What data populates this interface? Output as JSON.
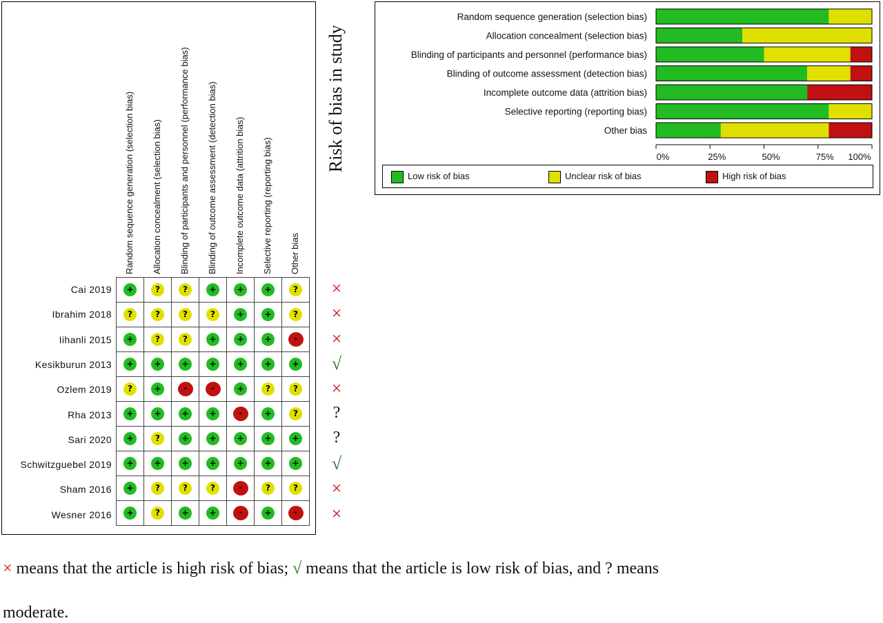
{
  "chart_data": [
    {
      "type": "table",
      "title": "",
      "domains": [
        "Random sequence generation (selection bias)",
        "Allocation concealment (selection bias)",
        "Blinding of participants and personnel (performance bias)",
        "Blinding of outcome assessment (detection bias)",
        "Incomplete outcome data (attrition bias)",
        "Selective reporting (reporting bias)",
        "Other bias"
      ],
      "verdict_header": "Risk of bias in study",
      "studies": [
        {
          "name": "Cai 2019",
          "ratings": [
            "low",
            "unclear",
            "unclear",
            "low",
            "low",
            "low",
            "unclear"
          ],
          "verdict": "high"
        },
        {
          "name": "Ibrahim 2018",
          "ratings": [
            "unclear",
            "unclear",
            "unclear",
            "unclear",
            "low",
            "low",
            "unclear"
          ],
          "verdict": "high"
        },
        {
          "name": "Iihanli 2015",
          "ratings": [
            "low",
            "unclear",
            "unclear",
            "low",
            "low",
            "low",
            "high"
          ],
          "verdict": "high"
        },
        {
          "name": "Kesikburun 2013",
          "ratings": [
            "low",
            "low",
            "low",
            "low",
            "low",
            "low",
            "low"
          ],
          "verdict": "low"
        },
        {
          "name": "Ozlem 2019",
          "ratings": [
            "unclear",
            "low",
            "high",
            "high",
            "low",
            "unclear",
            "unclear"
          ],
          "verdict": "high"
        },
        {
          "name": "Rha 2013",
          "ratings": [
            "low",
            "low",
            "low",
            "low",
            "high",
            "low",
            "unclear"
          ],
          "verdict": "unclear"
        },
        {
          "name": "Sari 2020",
          "ratings": [
            "low",
            "unclear",
            "low",
            "low",
            "low",
            "low",
            "low"
          ],
          "verdict": "unclear"
        },
        {
          "name": "Schwitzguebel 2019",
          "ratings": [
            "low",
            "low",
            "low",
            "low",
            "low",
            "low",
            "low"
          ],
          "verdict": "low"
        },
        {
          "name": "Sham 2016",
          "ratings": [
            "low",
            "unclear",
            "unclear",
            "unclear",
            "high",
            "unclear",
            "unclear"
          ],
          "verdict": "high"
        },
        {
          "name": "Wesner 2016",
          "ratings": [
            "low",
            "unclear",
            "low",
            "low",
            "high",
            "low",
            "high"
          ],
          "verdict": "high"
        }
      ],
      "symbols": {
        "low": "+",
        "unclear": "?",
        "high": "-"
      },
      "verdict_symbols": {
        "high": "×",
        "low": "√",
        "unclear": "?"
      },
      "colors": {
        "low": "#22bb22",
        "unclear": "#e0e000",
        "high": "#c01010"
      }
    },
    {
      "type": "bar",
      "orientation": "horizontal-stacked",
      "categories": [
        "Random sequence generation (selection bias)",
        "Allocation concealment (selection bias)",
        "Blinding of participants and personnel (performance bias)",
        "Blinding of outcome assessment (detection bias)",
        "Incomplete outcome data (attrition bias)",
        "Selective reporting (reporting bias)",
        "Other bias"
      ],
      "series": [
        {
          "name": "Low risk of bias",
          "color": "#22bb22",
          "values": [
            80,
            40,
            50,
            70,
            70,
            80,
            30
          ]
        },
        {
          "name": "Unclear risk of bias",
          "color": "#e0e000",
          "values": [
            20,
            60,
            40,
            20,
            0,
            20,
            50
          ]
        },
        {
          "name": "High risk of bias",
          "color": "#c01010",
          "values": [
            0,
            0,
            10,
            10,
            30,
            0,
            20
          ]
        }
      ],
      "xlim": [
        0,
        100
      ],
      "xticks": [
        "0%",
        "25%",
        "50%",
        "75%",
        "100%"
      ],
      "legend": "bottom"
    }
  ],
  "footnote": {
    "x_symbol": "×",
    "part1": " means that the article is high risk of bias; ",
    "check_symbol": "√",
    "part2": " means that the article is low risk of bias, and ? means",
    "line2": "moderate."
  }
}
